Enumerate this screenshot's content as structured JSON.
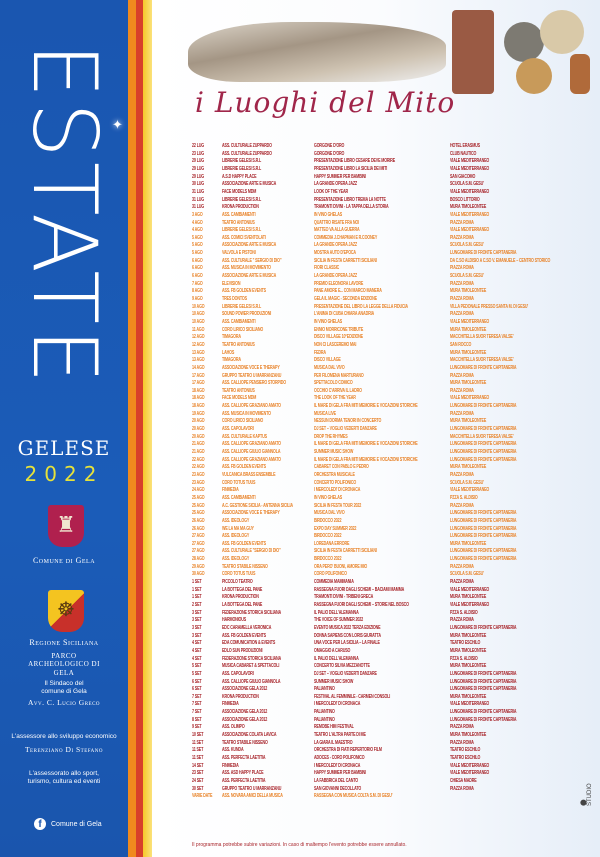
{
  "sidebar": {
    "title": "ESTATE",
    "subtitle": "GELESE",
    "year": "2022",
    "comune": "Comune di Gela",
    "regione": "Regione Siciliana",
    "parco": "PARCO ARCHEOLOGICO DI GELA",
    "sindaco_role": "Il Sindaco del comune di Gela",
    "sindaco_name": "Avv. C. Lucio Greco",
    "assessore_role": "L'assessore allo sviluppo economico",
    "assessore_name": "Terenziano Di Stefano",
    "assessorato": "L'assessorato allo sport, turismo, cultura ed eventi",
    "facebook": "Comune di Gela"
  },
  "colors": {
    "blue": "#1a56b0",
    "jul": "#a8262c",
    "aug": "#e8832a",
    "sep": "#a8262c",
    "stripe_orange": "#f08a1e",
    "stripe_red": "#d8402a",
    "stripe_yellow": "#f6c82a"
  },
  "header": {
    "title": "i Luoghi del Mito"
  },
  "events": [
    [
      "22 LUG",
      "ASS. CULTURALE ZUPPARDO",
      "GORGONE D'ORO",
      "HOTEL ERASMUS",
      "jul"
    ],
    [
      "23 LUG",
      "ASS. CULTURALE ZUPPARDO",
      "GORGONE D'ORO",
      "CLUB NAUTICO",
      "jul"
    ],
    [
      "29 LUG",
      "LIBRERIE GELESI S.R.L",
      "PRESENTAZIONE LIBRO CESARE DEVE MORIRE",
      "VIALE MEDITERRANEO",
      "jul"
    ],
    [
      "29 LUG",
      "LIBRERIE GELESI S.R.L",
      "PRESENTAZIONE LIBRO LA SICILIA DEI MITI",
      "VIALE MEDITERRANEO",
      "jul"
    ],
    [
      "29 LUG",
      "A.S.D HAPPY PLACE",
      "HAPPY SUMMER PER BAMBINI",
      "SAN GIACOMO",
      "jul"
    ],
    [
      "30 LUG",
      "ASSOCIAZIONE ARTE E MUSICA",
      "LA GRANDE OPERA JAZZ",
      "SCUOLA S.M. GESU'",
      "jul"
    ],
    [
      "31 LUG",
      "FACE MODELS MDM",
      "LOOK OF THE YEAR",
      "VIALE MEDITERRANEO",
      "jul"
    ],
    [
      "31 LUG",
      "LIBRERIE GELESI S.R.L",
      "PRESENTAZIONE LIBRO TREMA LA NOTTE",
      "BOSCO LITTORIO",
      "jul"
    ],
    [
      "31 LUG",
      "KRONA PRODUCTION",
      "TRAMONTI DIVINI - LA TAPPA DELLA STORIA",
      "MURA TIMOLEONTEE",
      "jul"
    ],
    [
      "3 AGO",
      "ASS. CAMBIAMENTI",
      "IN VINO GHELAS",
      "VIALE MEDITERRANEO",
      "aug"
    ],
    [
      "4 AGO",
      "TEATRO ANTONIUS",
      "QUATTRO RISATE FRA NOI",
      "PIAZZA ROMA",
      "aug"
    ],
    [
      "4 AGO",
      "LIBRERIE GELESI S.R.L",
      "MATTEO VA ALLA GUERRA",
      "VIALE MEDITERRANEO",
      "aug"
    ],
    [
      "5 AGO",
      "ASS. COMICI SVENTOLATI",
      "COMMEDIA J.CHAPMAN E R.COONEY",
      "PIAZZA ROMA",
      "aug"
    ],
    [
      "5 AGO",
      "ASSOCIAZIONE ARTE E MUSICA",
      "LA GRANDE OPERA JAZZ",
      "SCUOLA S.M. GESU'",
      "aug"
    ],
    [
      "5 AGO",
      "VALVOLA E PISTONI",
      "MOSTRA AUTO D'EPOCA",
      "LUNGOMARE DI FRONTE CAPITANERIA",
      "aug"
    ],
    [
      "6 AGO",
      "ASS. CULTURALE \" SERGIO DI DIO\"",
      "SICILIA IN FESTA CARRETTI SICILIANI",
      "DA C.SO ALDISIO A C.SO V. EMANUELE – CENTRO STORICO",
      "aug"
    ],
    [
      "6 AGO",
      "ASS. MUSICA IN MOVIMENTO",
      "FIORI CLASSIC",
      "PIAZZA ROMA",
      "aug"
    ],
    [
      "6 AGO",
      "ASSOCIAZIONE ARTE E MUSICA",
      "LA GRANDE OPERA JAZZ",
      "SCUOLA S.M. GESU'",
      "aug"
    ],
    [
      "7 AGO",
      "ELEVISION",
      "PREMIO ELEONORA LAVORE",
      "PIAZZA ROMA",
      "aug"
    ],
    [
      "8 AGO",
      "ASS. FB GOLDEN EVENTS",
      "PANE AMORE E... CON MARCO MANERA",
      "MURA TIMOLEONTEE",
      "aug"
    ],
    [
      "9 AGO",
      "TRES DONTOS",
      "GELA IL MAGIC - SECONDA EDIZIONE",
      "PIAZZA ROMA",
      "aug"
    ],
    [
      "10 AGO",
      "LIBRERIE GELESI S.R.L",
      "PRESENTAZIONE DEL LIBRO LA LEGGE DELLA FIDUCIA",
      "VILLA PEDONALE PRESSO SANTA M. DI GESU'",
      "aug"
    ],
    [
      "10 AGO",
      "SOUND POWER PRODUZIONI",
      "L'ANIMA DI CUBA CHIARA ANADRIA",
      "PIAZZA ROMA",
      "aug"
    ],
    [
      "10 AGO",
      "ASS. CAMBIAMENTI",
      "IN VINO GHELAS",
      "VIALE MEDITERRANEO",
      "aug"
    ],
    [
      "11 AGO",
      "CORO LIRICO SICILIANO",
      "ENNIO MORRICONE TRIBUTE",
      "MURA TIMOLEONTEE",
      "aug"
    ],
    [
      "12 AGO",
      "TIMAGORA",
      "DISCO VILLAGE 10°EDIZIONE",
      "MACCHITELLA SUOR TERESA VALSE'",
      "aug"
    ],
    [
      "12 AGO",
      "TEATRO ANTONIUS",
      "NON CI LASCEREMO MAI",
      "SAN ROCCO",
      "aug"
    ],
    [
      "13 AGO",
      "LAHOS",
      "FEDRA",
      "MURA TIMOLEONTEE",
      "aug"
    ],
    [
      "13 AGO",
      "TIMAGORA",
      "DISCO VILLAGE",
      "MACCHITELLA SUOR TERESA VALSE'",
      "aug"
    ],
    [
      "14 AGO",
      "ASSOCIAZIONE VOCE E THERAPY",
      "MUSICA DAL VIVO",
      "LUNGOMARE DI FRONTE CAPITANERIA",
      "aug"
    ],
    [
      "17 AGO",
      "GRUPPO TEATRO U MARRANZANU",
      "PER FILOMENA MARTURANO",
      "PIAZZA ROMA",
      "aug"
    ],
    [
      "17 AGO",
      "ASS. CALLIOPE PENSIERO STORPIDO",
      "SPETTACOLO COMICO",
      "MURA TIMOLEONTEE",
      "aug"
    ],
    [
      "18 AGO",
      "TEATRO ANTONIUS",
      "OCCHIO C'ARRIVA IL LADRO",
      "PIAZZA ROMA",
      "aug"
    ],
    [
      "18 AGO",
      "FACE MODELS MDM",
      "THE LOOK OF THE YEAR",
      "VIALE MEDITERRANEO",
      "aug"
    ],
    [
      "18 AGO",
      "ASS. CALLIOPE GRAZIANO AMATO",
      "IL MARE DI GELA FRA MITI MEMORIE E VOCAZIONI STORICHE",
      "LUNGOMARE DI FRONTE CAPITANERIA",
      "aug"
    ],
    [
      "19 AGO",
      "ASS. MUSICA IN MOVIMENTO",
      "MUSICA LIVE",
      "PIAZZA ROMA",
      "aug"
    ],
    [
      "20 AGO",
      "CORO LIRICO SICILIANO",
      "NESSUN DORMA TENORI IN CONCERTO",
      "MURA TIMOLEONTEE",
      "aug"
    ],
    [
      "20 AGO",
      "ASS. CAPOLAVORI",
      "DJ SET – VOGLIO VEDERTI DANZARE",
      "LUNGOMARE DI FRONTE CAPITANERIA",
      "aug"
    ],
    [
      "20 AGO",
      "ASS. CULTURALE KAPTUS",
      "DROP THE RHYMES",
      "MACCHITELLA SUOR TERESA VALSE'",
      "aug"
    ],
    [
      "21 AGO",
      "ASS. CALLIOPE GRAZIANO AMATO",
      "IL MARE DI GELA FRA MITI MEMORIE E VOCAZIONI STORICHE",
      "LUNGOMARE DI FRONTE CAPITANERIA",
      "aug"
    ],
    [
      "21 AGO",
      "ASS. CALLIOPE GIULIO GIANNOLA",
      "SUMMER MUSIC SHOW",
      "LUNGOMARE DI FRONTE CAPITANERIA",
      "aug"
    ],
    [
      "22 AGO",
      "ASS. CALLIOPE GRAZIANO AMATO",
      "IL MARE DI GELA FRA MITI MEMORIE E VOCAZIONI STORICHE",
      "LUNGOMARE DI FRONTE CAPITANERIA",
      "aug"
    ],
    [
      "22 AGO",
      "ASS. FB GOLDEN EVENTS",
      "CABARET CON PABLO E PEDRO",
      "MURA TIMOLEONTEE",
      "aug"
    ],
    [
      "23 AGO",
      "VULCANICA BRASS ENSEMBLE",
      "ORCHESTRA MUSICALE",
      "PIAZZA ROMA",
      "aug"
    ],
    [
      "23 AGO",
      "CORO TOTUS TUUS",
      "CONCERTO POLIFONICO",
      "SCUOLA S.M. GESU'",
      "aug"
    ],
    [
      "24 AGO",
      "FINMEDIA",
      "I MERCOLEDI' DI CRONACA",
      "VIALE MEDITERRANEO",
      "aug"
    ],
    [
      "25 AGO",
      "ASS. CAMBIAMENTI",
      "IN VINO GHELAS",
      "PZZA S. ALDISIO",
      "aug"
    ],
    [
      "25 AGO",
      "A.C. GESTIONE SICILIA - ANTENNA SICILIA",
      "SICILIA IN FESTA TOUR 2022",
      "PIAZZA ROMA",
      "aug"
    ],
    [
      "25 AGO",
      "ASSOCIAZIONE VOCE E THERAPY",
      "MUSICA DAL VIVO",
      "LUNGOMARE DI FRONTE CAPITANERIA",
      "aug"
    ],
    [
      "26 AGO",
      "ASS. IDEOLOGY",
      "BIRDOCCO 2022",
      "LUNGOMARE DI FRONTE CAPITANERIA",
      "aug"
    ],
    [
      "26 AGO",
      "WE LA MA MA GUY",
      "EXPO DAY SUMMER 2022",
      "LUNGOMARE DI FRONTE CAPITANERIA",
      "aug"
    ],
    [
      "27 AGO",
      "ASS. IDEOLOGY",
      "BIRDOCCO 2022",
      "LUNGOMARE DI FRONTE CAPITANERIA",
      "aug"
    ],
    [
      "27 AGO",
      "ASS. FB GOLDEN EVENTS",
      "LOREDANA ERRORE",
      "MURA TIMOLEONTEE",
      "aug"
    ],
    [
      "27 AGO",
      "ASS. CULTURALE \"SERGIO DI DIO\"",
      "SICILIA IN FESTA CARRETTI SICILIANI",
      "LUNGOMARE DI FRONTE CAPITANERIA",
      "aug"
    ],
    [
      "28 AGO",
      "ASS. IDEOLOGY",
      "BIRDOCCO 2022",
      "LUNGOMARE DI FRONTE CAPITANERIA",
      "aug"
    ],
    [
      "29 AGO",
      "TEATRO STABILE NISSENO",
      "ORA PERO' BUONI, AMORE MIO",
      "PIAZZA ROMA",
      "aug"
    ],
    [
      "30 AGO",
      "CORO TOTUS TUUS",
      "CORO POLIFONICO",
      "SCUOLA S.M. GESU'",
      "aug"
    ],
    [
      "1 SET",
      "PICCOLO TEATRO",
      "COMMEDIA MAMMANIA",
      "PIAZZA ROMA",
      "sep"
    ],
    [
      "1 SET",
      "LA BOTTEGA DEL PANE",
      "RASSEGNA FUORI DAGLI SCHEMI – BACIAMI MAMMA",
      "VIALE MEDITERRANEO",
      "sep"
    ],
    [
      "1 SET",
      "KRONA PRODUCTION",
      "TRAMONTI DIVINI - TRIBENI GRECA",
      "MURA TIMOLEONTEE",
      "sep"
    ],
    [
      "2 SET",
      "LA BOTTEGA DEL PANE",
      "RASSEGNA FUORI DAGLI SCHEMI – STORIE NEL BOSCO",
      "VIALE MEDITERRANEO",
      "sep"
    ],
    [
      "3 SET",
      "FEDERAZIONE STORICA SICILIANA",
      "IL PALIO DELL'ALEMANNA",
      "PZZA S. ALDISIO",
      "sep"
    ],
    [
      "3 SET",
      "HARMONIOUS",
      "THE VOICE OF SUMMER 2022",
      "PIAZZA ROMA",
      "sep"
    ],
    [
      "3 SET",
      "EDC CARAMELLA VERONICA",
      "EVENTO MUSICA 2022 TERZA EDIZIONE",
      "LUNGOMARE DI FRONTE CAPITANERIA",
      "sep"
    ],
    [
      "3 SET",
      "ASS. FB GOLDEN EVENTS",
      "DONNA SAPIENS CON LORIS GIURATTA",
      "MURA TIMOLEONTEE",
      "sep"
    ],
    [
      "4 SET",
      "EDA COMUNICATION & EVENTS",
      "UNA VOCE PER LA SICILIA – LA FINALE",
      "TEATRO ESCHILO",
      "sep"
    ],
    [
      "4 SET",
      "EDLO SUN PRODUZIONI",
      "OMAGGIO A CARUSO",
      "MURA TIMOLEONTEE",
      "sep"
    ],
    [
      "4 SET",
      "FEDERAZIONE STORICA SICILIANA",
      "IL PALIO DELL'ALEMANNA",
      "PZZA S. ALDISIO",
      "sep"
    ],
    [
      "5 SET",
      "MUSICA CABARET & SPETTACOLI",
      "CONCERTO SILVIA MEZZANOTTE",
      "MURA TIMOLEONTEE",
      "sep"
    ],
    [
      "5 SET",
      "ASS. CAPOLAVORI",
      "DJ SET – VOGLIO VEDERTI DANZARE",
      "LUNGOMARE DI FRONTE CAPITANERIA",
      "sep"
    ],
    [
      "6 SET",
      "ASS. CALLIOPE GIULIO GIANNOLA",
      "SUMMER MUSIC SHOW",
      "LUNGOMARE DI FRONTE CAPITANERIA",
      "sep"
    ],
    [
      "6 SET",
      "ASSOCIAZIONE GELA 2012",
      "PALIANTINO",
      "LUNGOMARE DI FRONTE CAPITANERIA",
      "sep"
    ],
    [
      "7 SET",
      "KRONA PRODUCTION",
      "FESTIVAL AL FEMMINILE - CARMEN CONSOLI",
      "MURA TIMOLEONTEE",
      "sep"
    ],
    [
      "7 SET",
      "FINMEDIA",
      "I MERCOLEDI' DI CRONACA",
      "VIALE MEDITERRANEO",
      "sep"
    ],
    [
      "7 SET",
      "ASSOCIAZIONE GELA 2012",
      "PALIANTINO",
      "LUNGOMARE DI FRONTE CAPITANERIA",
      "sep"
    ],
    [
      "8 SET",
      "ASSOCIAZIONE GELA 2012",
      "PALIANTINO",
      "LUNGOMARE DI FRONTE CAPITANERIA",
      "sep"
    ],
    [
      "9 SET",
      "ASS. OLIMPO",
      "REMOBE HIM FESTIVAL",
      "PIAZZA ROMA",
      "sep"
    ],
    [
      "10 SET",
      "ASSOCIAZIONE COLATA LAVICA",
      "TEATRO L'ALTRA PARTE DI ME",
      "MURA TIMOLEONTEE",
      "sep"
    ],
    [
      "11 SET",
      "TEATRO STABILE NISSENO",
      "LA GIARA IL MAESTRO",
      "PIAZZA ROMA",
      "sep"
    ],
    [
      "11 SET",
      "ASS. KUNDA",
      "ORCHESTRA DI FIATI REPERTORIO FILM",
      "TEATRO ESCHILO",
      "sep"
    ],
    [
      "11 SET",
      "ASS. PERFECTA LAETITIA",
      "ADOCES - CORO POLIFONICO",
      "TEATRO ESCHILO",
      "sep"
    ],
    [
      "14 SET",
      "FINMEDIA",
      "I MERCOLEDI' DI CRONACA",
      "VIALE MEDITERRANEO",
      "sep"
    ],
    [
      "23 SET",
      "ASS. ASD HAPPY PLACE",
      "HAPPY SUMMER PER BAMBINI",
      "VIALE MEDITERRANEO",
      "sep"
    ],
    [
      "24 SET",
      "ASS. PERFECTA LAETITIA",
      "LA FABBRICA DEL CANTO",
      "CHIESA MADRE",
      "sep"
    ],
    [
      "30 SET",
      "GRUPPO TEATRO U MARRANZANU",
      "SAN GIOVANNI DECOLLATO",
      "PIAZZA ROMA",
      "sep"
    ],
    [
      "VARIE DATE",
      "ASS. NOVARA AMICI DELLA MUSICA",
      "RASSEGNA CON MUSICA COLTA S.M. DI GESU'",
      "",
      "aug"
    ]
  ],
  "footer": {
    "note": "Il programma potrebbe subire variazioni. In caso di maltempo l'evento potrebbe essere annullato.",
    "studio_logo": "STUDIO"
  }
}
